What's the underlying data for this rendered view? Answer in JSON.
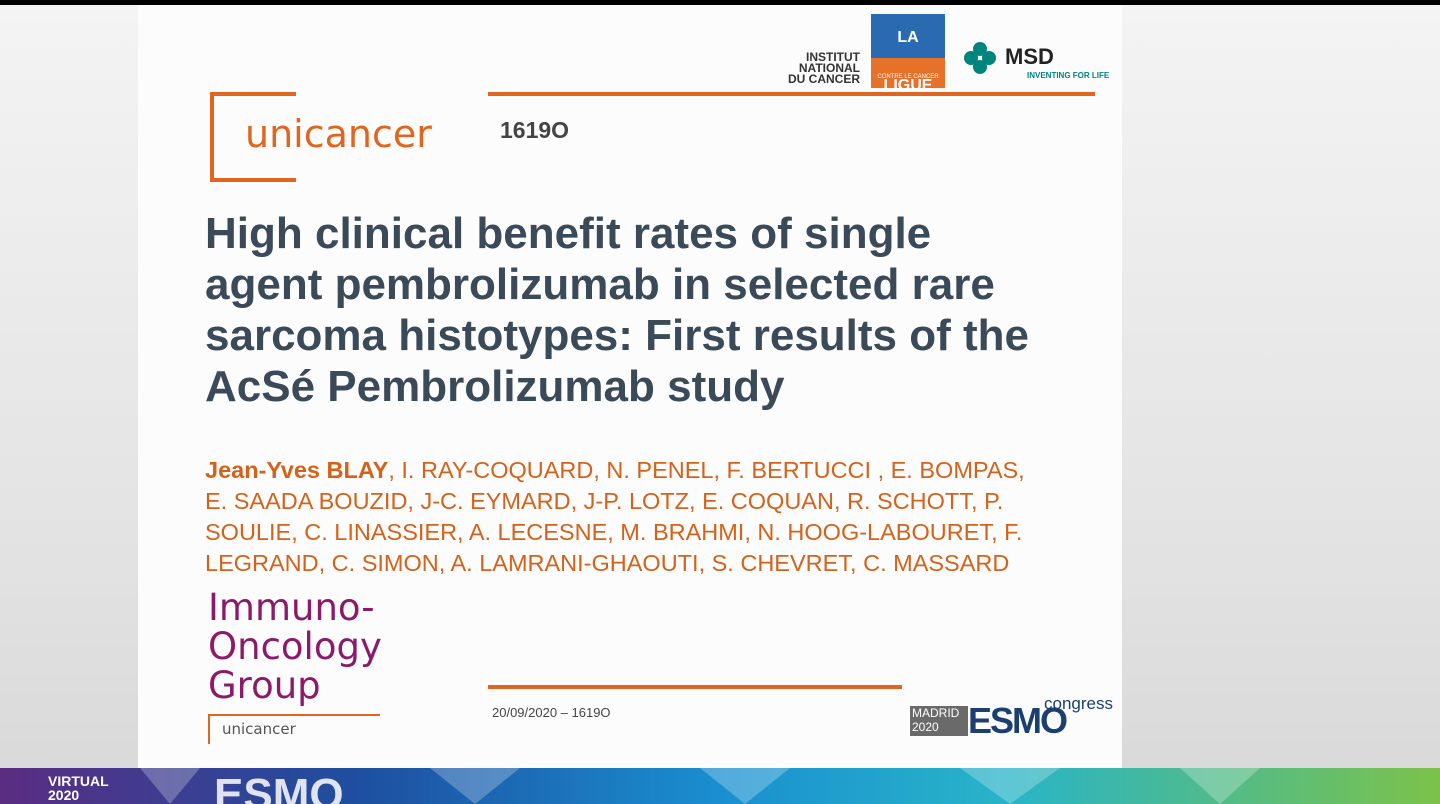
{
  "logos": {
    "inca": [
      "INSTITUT",
      "NATIONAL",
      "DU CANCER"
    ],
    "ligue": {
      "name": "LA LIGUE",
      "sub": "CONTRE LE CANCER"
    },
    "msd": {
      "name": "MSD",
      "tagline": "INVENTING FOR LIFE"
    },
    "unicancer": "unicancer"
  },
  "abstract_id": "1619O",
  "title_lines": [
    "High clinical benefit rates of single",
    "agent pembrolizumab in selected rare",
    "sarcoma histotypes: First results of the",
    "AcSé Pembrolizumab study"
  ],
  "first_author": "Jean-Yves BLAY",
  "author_lines": [
    ", I. RAY-COQUARD, N. PENEL, F. BERTUCCI , E. BOMPAS,",
    "E. SAADA BOUZID, J-C. EYMARD, J-P. LOTZ, E. COQUAN, R. SCHOTT, P.",
    "SOULIE, C. LINASSIER, A. LECESNE, M. BRAHMI, N. HOOG-LABOURET, F.",
    "LEGRAND, C. SIMON, A. LAMRANI-GHAOUTI, S. CHEVRET, C. MASSARD"
  ],
  "group_lines": [
    "Immuno-",
    "Oncology",
    "Group"
  ],
  "group_unicancer": "unicancer",
  "footer_date": "20/09/2020 – 1619O",
  "congress": {
    "city": "MADRID",
    "year": "2020",
    "name": "ESMO",
    "suffix": "congress"
  },
  "bottom_bar": {
    "virtual": "VIRTUAL",
    "year": "2020",
    "esmo": "ESMO"
  }
}
